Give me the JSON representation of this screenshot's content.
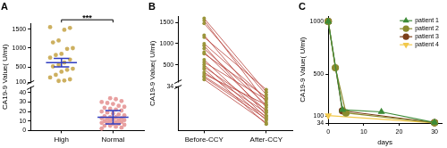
{
  "chart_data": [
    {
      "type": "dot",
      "title": "A",
      "y_label": "CA19-9 Value( U/ml)",
      "categories": [
        "High",
        "Normal"
      ],
      "values": [
        [
          1550,
          1530,
          1480,
          1200,
          1150,
          1000,
          980,
          850,
          820,
          750,
          700,
          620,
          560,
          520,
          460,
          430,
          380,
          300,
          230,
          180,
          150,
          140
        ],
        [
          2,
          3,
          4,
          5,
          5,
          6,
          7,
          7,
          8,
          8,
          9,
          9,
          10,
          10,
          11,
          11,
          12,
          12,
          13,
          13,
          14,
          14,
          15,
          16,
          17,
          18,
          19,
          20,
          21,
          22,
          23,
          24,
          25,
          26,
          28,
          29,
          30,
          31,
          33,
          34
        ]
      ],
      "mean": [
        620,
        14
      ],
      "error": [
        110,
        7
      ],
      "colors": [
        "#cdb060",
        "#e8a0a0"
      ],
      "ylim": [
        0,
        1650
      ],
      "ybreak": [
        45,
        100
      ],
      "yticks": [
        0,
        10,
        20,
        30,
        40,
        100,
        500,
        1000,
        1500
      ],
      "annotation": "***",
      "grid": false
    },
    {
      "type": "paired",
      "title": "B",
      "y_label": "CA19-9 Value( U/ml)",
      "categories": [
        "Before-CCY",
        "After-CCY"
      ],
      "series": [
        {
          "values": [
            1600,
            30
          ]
        },
        {
          "values": [
            1550,
            22
          ]
        },
        {
          "values": [
            1480,
            28
          ]
        },
        {
          "values": [
            1200,
            18
          ]
        },
        {
          "values": [
            1150,
            32
          ]
        },
        {
          "values": [
            1000,
            25
          ]
        },
        {
          "values": [
            950,
            12
          ]
        },
        {
          "values": [
            880,
            20
          ]
        },
        {
          "values": [
            800,
            15
          ]
        },
        {
          "values": [
            760,
            26
          ]
        },
        {
          "values": [
            620,
            10
          ]
        },
        {
          "values": [
            560,
            24
          ]
        },
        {
          "values": [
            500,
            8
          ]
        },
        {
          "values": [
            450,
            16
          ]
        },
        {
          "values": [
            400,
            5
          ]
        },
        {
          "values": [
            320,
            14
          ]
        },
        {
          "values": [
            280,
            20
          ]
        },
        {
          "values": [
            230,
            11
          ]
        },
        {
          "values": [
            200,
            9
          ]
        },
        {
          "values": [
            150,
            6
          ]
        }
      ],
      "color": "#b8423c",
      "ylim": [
        0,
        1650
      ],
      "ybreak": [
        34,
        100
      ],
      "yticks": [
        34,
        500,
        1000,
        1500
      ],
      "grid": false
    },
    {
      "type": "line",
      "title": "C",
      "y_label": "CA19-9 Value( U/ml)",
      "x_label": "days",
      "series": [
        {
          "name": "patient 1",
          "color": "#3d8b37",
          "marker": "triangle",
          "x": [
            0,
            4,
            15,
            30
          ],
          "values": [
            1000,
            160,
            140,
            40
          ]
        },
        {
          "name": "patient 2",
          "color": "#8b8b2e",
          "marker": "circle",
          "x": [
            0,
            2,
            5,
            30
          ],
          "values": [
            1000,
            560,
            130,
            36
          ]
        },
        {
          "name": "patient 3",
          "color": "#7b3f1a",
          "marker": "circle",
          "x": [
            0,
            4,
            30
          ],
          "values": [
            1000,
            150,
            38
          ]
        },
        {
          "name": "patient 4",
          "color": "#f2c94c",
          "marker": "triangle_down",
          "x": [
            0,
            30
          ],
          "values": [
            105,
            35
          ]
        }
      ],
      "xlim": [
        0,
        32
      ],
      "xticks": [
        0,
        10,
        20,
        30
      ],
      "ylim": [
        34,
        1050
      ],
      "yticks": [
        34,
        100,
        500,
        1000
      ],
      "legend": "upper right",
      "grid": false
    }
  ]
}
